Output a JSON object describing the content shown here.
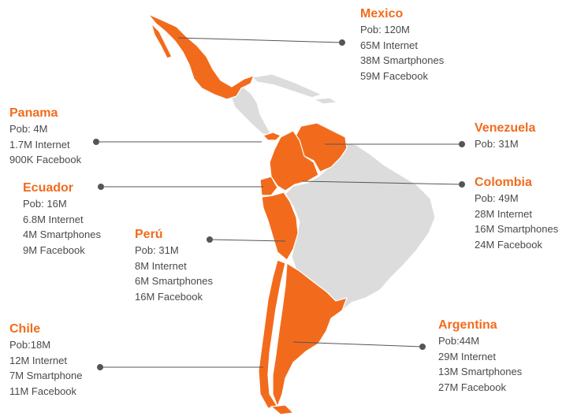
{
  "colors": {
    "highlight": "#F26B1D",
    "land": "#DCDCDC",
    "border": "#FFFFFF",
    "connector": "#555555",
    "text": "#4a4a4a"
  },
  "countries": {
    "mexico": {
      "name": "Mexico",
      "lines": [
        "Pob: 120M",
        "65M Internet",
        "38M Smartphones",
        "59M Facebook"
      ]
    },
    "panama": {
      "name": "Panama",
      "lines": [
        "Pob: 4M",
        "1.7M Internet",
        "900K Facebook"
      ]
    },
    "venezuela": {
      "name": "Venezuela",
      "lines": [
        "Pob: 31M"
      ]
    },
    "ecuador": {
      "name": "Ecuador",
      "lines": [
        "Pob: 16M",
        "6.8M Internet",
        "4M Smartphones",
        "9M Facebook"
      ]
    },
    "colombia": {
      "name": "Colombia",
      "lines": [
        "Pob: 49M",
        "28M Internet",
        "16M Smartphones",
        "24M Facebook"
      ]
    },
    "peru": {
      "name": "Perú",
      "lines": [
        "Pob: 31M",
        "8M Internet",
        "6M Smartphones",
        "16M Facebook"
      ]
    },
    "chile": {
      "name": "Chile",
      "lines": [
        "Pob:18M",
        "12M Internet",
        "7M Smartphone",
        "11M Facebook"
      ]
    },
    "argentina": {
      "name": "Argentina",
      "lines": [
        "Pob:44M",
        "29M Internet",
        "13M Smartphones",
        "27M Facebook"
      ]
    }
  }
}
